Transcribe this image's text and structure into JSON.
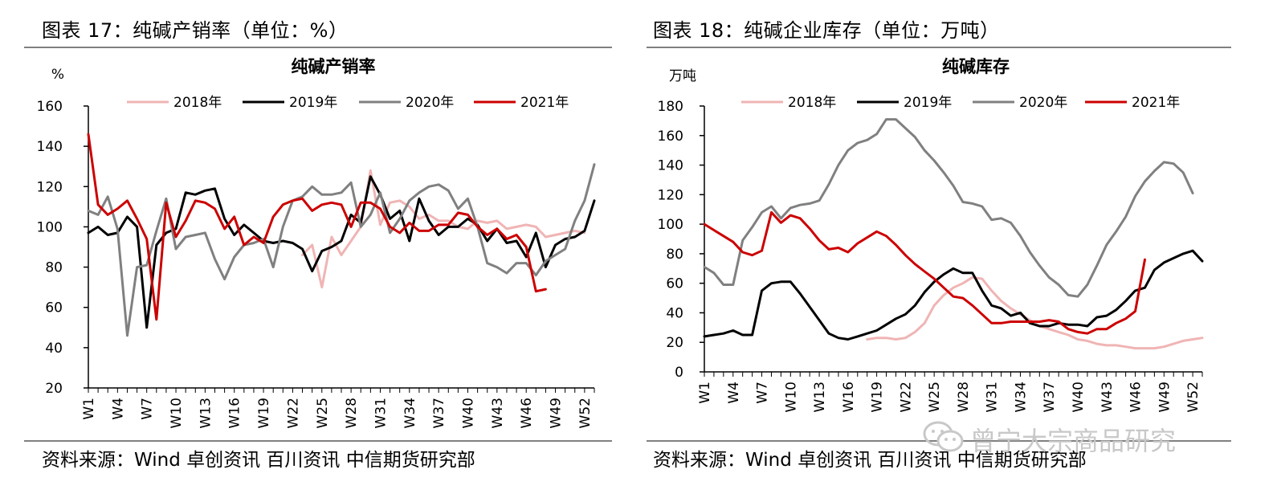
{
  "figures": [
    {
      "caption": "图表 17：纯碱产销率（单位：%）",
      "source": "资料来源：Wind 卓创资讯 百川资讯 中信期货研究部"
    },
    {
      "caption": "图表 18：纯碱企业库存（单位：万吨）",
      "source": "资料来源：Wind 卓创资讯 百川资讯 中信期货研究部"
    }
  ],
  "watermark": {
    "text": "曾宁大宗商品研究",
    "icon": "wechat-icon"
  },
  "chart_data": [
    {
      "type": "line",
      "title": "纯碱产销率",
      "ylabel": "%",
      "ylim": [
        20,
        160
      ],
      "yticks": [
        20,
        40,
        60,
        80,
        100,
        120,
        140,
        160
      ],
      "xtick_labels": [
        "W1",
        "W4",
        "W7",
        "W10",
        "W13",
        "W16",
        "W19",
        "W22",
        "W25",
        "W28",
        "W31",
        "W34",
        "W37",
        "W40",
        "W43",
        "W46",
        "W49",
        "W52"
      ],
      "legend_position": "top",
      "series": [
        {
          "name": "2018年",
          "color": "#f0b4b4",
          "values": [
            null,
            null,
            null,
            null,
            null,
            null,
            null,
            null,
            null,
            null,
            null,
            null,
            null,
            null,
            null,
            null,
            null,
            null,
            null,
            null,
            null,
            null,
            86,
            91,
            70,
            95,
            86,
            93,
            100,
            128,
            101,
            112,
            113,
            110,
            104,
            106,
            103,
            103,
            100,
            99,
            103,
            102,
            103,
            99,
            100,
            101,
            100,
            95,
            96,
            97,
            98,
            97
          ]
        },
        {
          "name": "2019年",
          "color": "#000000",
          "values": [
            97,
            100,
            96,
            97,
            105,
            100,
            50,
            91,
            97,
            99,
            117,
            116,
            118,
            119,
            104,
            96,
            101,
            97,
            93,
            92,
            93,
            92,
            89,
            78,
            88,
            90,
            93,
            106,
            102,
            125,
            116,
            104,
            108,
            93,
            114,
            103,
            96,
            100,
            100,
            104,
            101,
            93,
            99,
            92,
            93,
            85,
            97,
            80,
            91,
            94,
            95,
            98,
            113
          ]
        },
        {
          "name": "2020年",
          "color": "#808080",
          "values": [
            108,
            106,
            115,
            99,
            46,
            80,
            81,
            98,
            114,
            89,
            95,
            96,
            97,
            84,
            74,
            85,
            91,
            92,
            94,
            80,
            100,
            113,
            115,
            120,
            116,
            116,
            117,
            122,
            100,
            106,
            117,
            97,
            104,
            113,
            117,
            120,
            121,
            118,
            109,
            114,
            100,
            82,
            80,
            77,
            82,
            82,
            76,
            83,
            86,
            89,
            103,
            113,
            131
          ]
        },
        {
          "name": "2021年",
          "color": "#cc0000",
          "values": [
            146,
            111,
            106,
            109,
            113,
            104,
            94,
            54,
            112,
            95,
            103,
            113,
            112,
            109,
            99,
            105,
            91,
            95,
            92,
            105,
            111,
            113,
            114,
            108,
            111,
            112,
            111,
            100,
            112,
            112,
            109,
            100,
            97,
            102,
            98,
            98,
            101,
            101,
            107,
            106,
            100,
            96,
            99,
            94,
            96,
            90,
            68,
            69,
            null,
            null,
            null,
            null,
            null
          ]
        }
      ]
    },
    {
      "type": "line",
      "title": "纯碱库存",
      "ylabel": "万吨",
      "ylim": [
        0,
        180
      ],
      "yticks": [
        0,
        20,
        40,
        60,
        80,
        100,
        120,
        140,
        160,
        180
      ],
      "xtick_labels": [
        "W1",
        "W4",
        "W7",
        "W10",
        "W13",
        "W16",
        "W19",
        "W22",
        "W25",
        "W28",
        "W31",
        "W34",
        "W37",
        "W40",
        "W43",
        "W46",
        "W49",
        "W52"
      ],
      "legend_position": "top",
      "series": [
        {
          "name": "2018年",
          "color": "#f0b4b4",
          "values": [
            null,
            null,
            null,
            null,
            null,
            null,
            null,
            null,
            null,
            null,
            null,
            null,
            null,
            null,
            null,
            null,
            null,
            22,
            23,
            23,
            22,
            23,
            27,
            33,
            45,
            52,
            57,
            60,
            64,
            63,
            55,
            48,
            43,
            39,
            35,
            31,
            29,
            27,
            25,
            22,
            21,
            19,
            18,
            18,
            17,
            16,
            16,
            16,
            17,
            19,
            21,
            22,
            23
          ]
        },
        {
          "name": "2019年",
          "color": "#000000",
          "values": [
            24,
            25,
            26,
            28,
            25,
            25,
            55,
            60,
            61,
            61,
            53,
            44,
            35,
            26,
            23,
            22,
            24,
            26,
            28,
            32,
            36,
            39,
            45,
            54,
            61,
            66,
            70,
            67,
            67,
            55,
            45,
            43,
            38,
            40,
            33,
            31,
            31,
            33,
            32,
            32,
            31,
            37,
            38,
            42,
            48,
            55,
            57,
            69,
            74,
            77,
            80,
            82,
            75
          ]
        },
        {
          "name": "2020年",
          "color": "#808080",
          "values": [
            71,
            67,
            59,
            59,
            89,
            98,
            108,
            112,
            104,
            111,
            113,
            114,
            116,
            127,
            140,
            150,
            155,
            157,
            161,
            171,
            171,
            165,
            159,
            150,
            143,
            135,
            126,
            115,
            114,
            112,
            103,
            104,
            101,
            92,
            81,
            72,
            64,
            59,
            52,
            51,
            59,
            72,
            86,
            95,
            105,
            119,
            129,
            136,
            142,
            141,
            135,
            121
          ]
        },
        {
          "name": "2021年",
          "color": "#cc0000",
          "values": [
            100,
            96,
            92,
            88,
            81,
            79,
            82,
            108,
            101,
            106,
            104,
            97,
            89,
            83,
            84,
            81,
            87,
            91,
            95,
            92,
            86,
            79,
            73,
            68,
            63,
            57,
            51,
            50,
            45,
            39,
            33,
            33,
            34,
            34,
            34,
            34,
            35,
            34,
            29,
            27,
            26,
            29,
            29,
            33,
            36,
            41,
            76,
            null,
            null,
            null,
            null,
            null,
            null
          ]
        }
      ]
    }
  ]
}
